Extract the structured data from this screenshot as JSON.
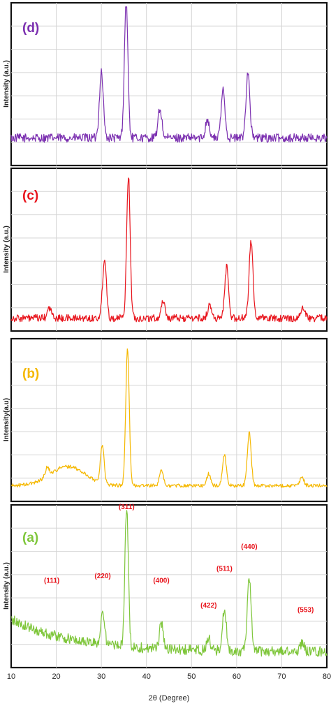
{
  "chart_data": {
    "type": "line",
    "x_label": "2θ (Degree)",
    "x_range": [
      10,
      80
    ],
    "x_ticks": [
      "10",
      "20",
      "30",
      "40",
      "50",
      "60",
      "70",
      "80"
    ],
    "grid": true,
    "panels": [
      {
        "id": "d",
        "tag": "(d)",
        "color": "#7b2fb0",
        "ylabel": "Intensity (a.u.)",
        "baseline": 0.13,
        "noise": 0.03,
        "hump": 0.0,
        "peaks": [
          [
            30.0,
            0.45
          ],
          [
            35.5,
            0.93
          ],
          [
            43.0,
            0.2
          ],
          [
            53.5,
            0.13
          ],
          [
            57.0,
            0.33
          ],
          [
            62.5,
            0.45
          ]
        ]
      },
      {
        "id": "c",
        "tag": "(c)",
        "color": "#e8141c",
        "ylabel": "Intensity (a.u.)",
        "baseline": 0.03,
        "noise": 0.025,
        "hump": 0.0,
        "peaks": [
          [
            18.5,
            0.07
          ],
          [
            30.7,
            0.41
          ],
          [
            36.0,
            0.97
          ],
          [
            43.7,
            0.12
          ],
          [
            54.0,
            0.09
          ],
          [
            57.8,
            0.35
          ],
          [
            63.2,
            0.53
          ],
          [
            74.8,
            0.08
          ]
        ]
      },
      {
        "id": "b",
        "tag": "(b)",
        "color": "#f5b800",
        "ylabel": "Intensity(a.u)",
        "baseline": 0.05,
        "noise": 0.012,
        "hump": 0.13,
        "peaks": [
          [
            18.0,
            0.06
          ],
          [
            30.2,
            0.25
          ],
          [
            35.8,
            0.93
          ],
          [
            43.3,
            0.11
          ],
          [
            53.8,
            0.08
          ],
          [
            57.3,
            0.21
          ],
          [
            62.8,
            0.36
          ],
          [
            74.5,
            0.06
          ]
        ]
      },
      {
        "id": "a",
        "tag": "(a)",
        "color": "#7ec63a",
        "ylabel": "Intensity (a.u.)",
        "baseline": 0.05,
        "noise": 0.035,
        "hump": 0.0,
        "decay": 0.22,
        "peaks": [
          [
            30.3,
            0.22
          ],
          [
            35.6,
            0.93
          ],
          [
            43.3,
            0.18
          ],
          [
            53.8,
            0.08
          ],
          [
            57.3,
            0.28
          ],
          [
            62.8,
            0.49
          ],
          [
            74.5,
            0.06
          ]
        ]
      }
    ],
    "peak_labels": {
      "color": "#e8141c",
      "items": [
        {
          "text": "(111)",
          "x": 19.0,
          "y": 0.52
        },
        {
          "text": "(220)",
          "x": 30.3,
          "y": 0.55
        },
        {
          "text": "(311)",
          "x": 35.6,
          "y": 1.02
        },
        {
          "text": "(400)",
          "x": 43.3,
          "y": 0.52
        },
        {
          "text": "(422)",
          "x": 53.8,
          "y": 0.35
        },
        {
          "text": "(511)",
          "x": 57.3,
          "y": 0.6
        },
        {
          "text": "(440)",
          "x": 62.8,
          "y": 0.75
        },
        {
          "text": "(553)",
          "x": 75.3,
          "y": 0.32
        }
      ]
    }
  }
}
